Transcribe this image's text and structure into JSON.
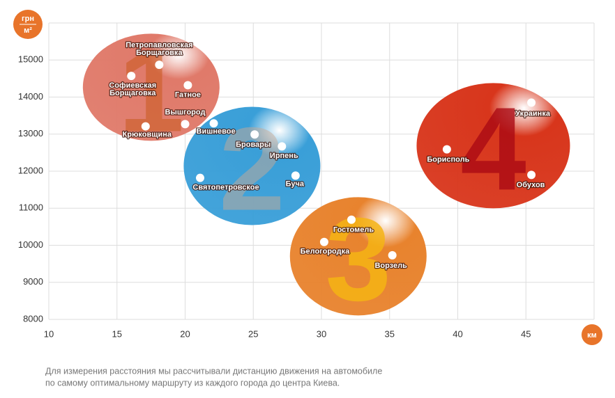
{
  "chart_data": {
    "type": "scatter",
    "y_unit": "грн",
    "y_unit_sub": "м²",
    "x_unit": "км",
    "xlim": [
      10,
      50
    ],
    "ylim": [
      8000,
      16000
    ],
    "xticks": [
      10,
      15,
      20,
      25,
      30,
      35,
      40,
      45
    ],
    "yticks": [
      8000,
      9000,
      10000,
      11000,
      12000,
      13000,
      14000,
      15000
    ],
    "grid": true,
    "series": [
      {
        "name": "1",
        "color": "#e07a6a",
        "x": [
          18.1,
          16.05,
          20.2,
          20.0,
          17.1
        ],
        "values": [
          14870,
          14570,
          14320,
          13270,
          13210
        ],
        "labels": [
          [
            "Петропавловская",
            "Борщаговка"
          ],
          [
            "Софиевская",
            "Борщаговка"
          ],
          [
            "Гатное"
          ],
          [
            "Вышгород"
          ],
          [
            "Крюковщина"
          ]
        ]
      },
      {
        "name": "2",
        "color": "#3a9fd8",
        "x": [
          22.1,
          25.1,
          27.1,
          28.1,
          21.1
        ],
        "values": [
          13290,
          12990,
          12670,
          11880,
          11820
        ],
        "labels": [
          [
            "Вишневое"
          ],
          [
            "Бровары"
          ],
          [
            "Ирпень"
          ],
          [
            "Буча"
          ],
          [
            "Святопетровское"
          ]
        ]
      },
      {
        "name": "3",
        "color": "#e8832e",
        "x": [
          32.2,
          30.2,
          35.2
        ],
        "values": [
          10690,
          10090,
          9730
        ],
        "labels": [
          [
            "Гостомель"
          ],
          [
            "Белогородка"
          ],
          [
            "Ворзель"
          ]
        ]
      },
      {
        "name": "4",
        "color": "#d8361c",
        "x": [
          39.2,
          45.4,
          45.4
        ],
        "values": [
          12590,
          13850,
          11900
        ],
        "labels": [
          [
            "Борисполь"
          ],
          [
            "Украинка"
          ],
          [
            "Обухов"
          ]
        ]
      }
    ],
    "note": [
      "Для измерения расстояния мы рассчитывали дистанцию движения на автомобиле",
      "по самому оптимальному маршруту из каждого города до центра Киева."
    ]
  }
}
